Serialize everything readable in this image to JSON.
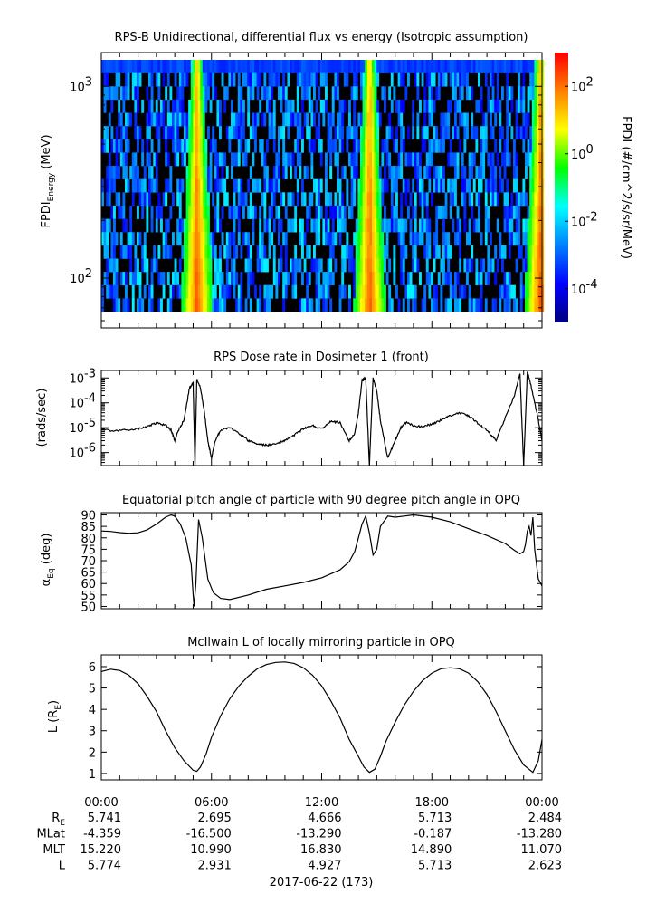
{
  "chart_data": [
    {
      "type": "heatmap",
      "title": "RPS-B  Unidirectional, differential flux vs energy (Isotropic assumption)",
      "ylabel": "FPDI",
      "ylabel_sub": "Energy",
      "ylabel_unit": " (MeV)",
      "yscale": "log",
      "ylim": [
        55,
        1500
      ],
      "yticks": [
        {
          "value": 100,
          "base": "10",
          "exp": "2"
        },
        {
          "value": 1000,
          "base": "10",
          "exp": "3"
        }
      ],
      "energy_bins": 19,
      "perigee_hours": [
        5.15,
        14.55,
        23.85
      ],
      "colorbar": {
        "label": "FPDI (#/cm^2/s/sr/MeV)",
        "scale": "log",
        "range": [
          1e-05,
          1000.0
        ],
        "ticks": [
          {
            "value": -4,
            "base": "10",
            "exp": "-4"
          },
          {
            "value": -2,
            "base": "10",
            "exp": "-2"
          },
          {
            "value": 0,
            "base": "10",
            "exp": "0"
          },
          {
            "value": 2,
            "base": "10",
            "exp": "2"
          }
        ],
        "colors": [
          "#000080",
          "#0000ff",
          "#0080ff",
          "#00ffff",
          "#00ff00",
          "#ffff00",
          "#ff8000",
          "#ff0000"
        ]
      }
    },
    {
      "type": "line",
      "title": "RPS  Dose rate in Dosimeter 1 (front)",
      "ylabel": "(rads/sec)",
      "yscale": "log",
      "ylim": [
        3e-07,
        0.002
      ],
      "yticks": [
        {
          "value": 1e-06,
          "base": "10",
          "exp": "-6"
        },
        {
          "value": 1e-05,
          "base": "10",
          "exp": "-5"
        },
        {
          "value": 0.0001,
          "base": "10",
          "exp": "-4"
        },
        {
          "value": 0.001,
          "base": "10",
          "exp": "-3"
        }
      ],
      "x": [
        0,
        1,
        2,
        2.5,
        3,
        3.5,
        3.8,
        4.0,
        4.2,
        4.5,
        4.8,
        5.0,
        5.1,
        5.2,
        5.4,
        5.6,
        5.8,
        6.0,
        6.2,
        6.5,
        7.0,
        7.5,
        8.0,
        8.5,
        9.0,
        9.5,
        10.0,
        10.5,
        11.0,
        11.5,
        12.0,
        12.5,
        13.0,
        13.5,
        13.8,
        14.0,
        14.2,
        14.4,
        14.6,
        14.8,
        15.0,
        15.2,
        15.6,
        16.0,
        16.3,
        16.6,
        17.0,
        17.5,
        18.0,
        18.5,
        19.0,
        19.5,
        20.0,
        20.5,
        21.0,
        21.5,
        22.0,
        22.5,
        22.8,
        23.0,
        23.2,
        23.4,
        23.6,
        23.8,
        24.0
      ],
      "values": [
        8e-06,
        7.5e-06,
        9e-06,
        1.1e-05,
        1.5e-05,
        1.3e-05,
        8e-06,
        3e-06,
        8e-06,
        2e-05,
        0.0004,
        0.0006,
        3e-07,
        0.0009,
        0.0004,
        5e-05,
        3e-06,
        6e-07,
        3e-06,
        8e-06,
        1e-05,
        6e-06,
        3e-06,
        2.2e-06,
        2e-06,
        2.2e-06,
        3e-06,
        5e-06,
        9e-06,
        1.2e-05,
        9e-06,
        1.8e-05,
        1.6e-05,
        3e-06,
        6e-06,
        4e-05,
        0.0008,
        0.001,
        3e-07,
        0.001,
        0.0003,
        2e-05,
        6e-07,
        3e-06,
        1e-05,
        1.6e-05,
        1.2e-05,
        1.1e-05,
        1.4e-05,
        2e-05,
        3e-05,
        4e-05,
        3e-05,
        1.5e-05,
        8e-06,
        3e-06,
        2.5e-05,
        0.0002,
        0.0015,
        3e-07,
        0.0018,
        0.0005,
        0.0001,
        2e-05,
        3e-06
      ]
    },
    {
      "type": "line",
      "title": "Equatorial pitch angle of particle with 90 degree pitch angle in OPQ",
      "ylabel": "α",
      "ylabel_sub": "Eq",
      "ylabel_unit": " (deg)",
      "ylim": [
        49,
        91
      ],
      "yticks": [
        50,
        55,
        60,
        65,
        70,
        75,
        80,
        85,
        90
      ],
      "x": [
        0,
        0.5,
        1.0,
        1.5,
        2.0,
        2.5,
        3.0,
        3.5,
        3.8,
        4.0,
        4.3,
        4.6,
        4.9,
        5.0,
        5.05,
        5.15,
        5.3,
        5.5,
        5.8,
        6.1,
        6.5,
        7.0,
        8.0,
        9.0,
        10.0,
        11.0,
        12.0,
        13.0,
        13.5,
        13.8,
        14.0,
        14.2,
        14.4,
        14.6,
        14.8,
        15.0,
        15.2,
        15.6,
        16.0,
        16.5,
        17.0,
        18.0,
        19.0,
        20.0,
        21.0,
        22.0,
        22.5,
        22.8,
        23.0,
        23.1,
        23.2,
        23.3,
        23.4,
        23.5,
        23.6,
        23.8,
        24.0
      ],
      "values": [
        83,
        82.8,
        82.3,
        82,
        82.2,
        83.5,
        86,
        89,
        90,
        89.5,
        86,
        80,
        68,
        55,
        50,
        60,
        88,
        80,
        62,
        56,
        53.5,
        53,
        55,
        57.5,
        59,
        60.5,
        62.5,
        66,
        69.5,
        74,
        80,
        86,
        89.5,
        82,
        72.5,
        75,
        85,
        89.5,
        89,
        89.5,
        90,
        89,
        87,
        84,
        81,
        77.5,
        74.5,
        73,
        74,
        77,
        83,
        85,
        81,
        89,
        75,
        62,
        59
      ]
    },
    {
      "type": "line",
      "title": "McIlwain L of locally mirroring particle in OPQ",
      "ylabel": "L (R",
      "ylabel_sub": "E",
      "ylabel_unit": ")",
      "ylim": [
        0.7,
        6.55
      ],
      "yticks": [
        1,
        2,
        3,
        4,
        5,
        6
      ],
      "x": [
        0,
        0.5,
        1.0,
        1.5,
        2.0,
        2.5,
        3.0,
        3.5,
        4.0,
        4.5,
        5.0,
        5.2,
        5.4,
        5.7,
        6.0,
        6.5,
        7.0,
        7.5,
        8.0,
        8.5,
        9.0,
        9.5,
        10.0,
        10.5,
        11.0,
        11.5,
        12.0,
        12.5,
        13.0,
        13.5,
        14.0,
        14.3,
        14.6,
        14.9,
        15.2,
        15.5,
        16.0,
        16.5,
        17.0,
        17.5,
        18.0,
        18.5,
        19.0,
        19.5,
        20.0,
        20.5,
        21.0,
        21.5,
        22.0,
        22.5,
        23.0,
        23.5,
        23.8,
        24.0
      ],
      "values": [
        5.77,
        5.88,
        5.82,
        5.6,
        5.2,
        4.6,
        3.9,
        3.0,
        2.2,
        1.6,
        1.15,
        1.1,
        1.3,
        1.9,
        2.7,
        3.7,
        4.5,
        5.1,
        5.55,
        5.9,
        6.1,
        6.2,
        6.22,
        6.15,
        5.95,
        5.6,
        5.1,
        4.4,
        3.6,
        2.6,
        1.8,
        1.3,
        1.05,
        1.2,
        1.8,
        2.5,
        3.4,
        4.2,
        4.85,
        5.35,
        5.7,
        5.9,
        5.95,
        5.9,
        5.7,
        5.3,
        4.7,
        3.9,
        3.0,
        2.1,
        1.4,
        1.05,
        1.6,
        2.6
      ]
    }
  ],
  "ephemeris": {
    "time_labels": [
      "00:00",
      "06:00",
      "12:00",
      "18:00",
      "00:00"
    ],
    "rows": [
      {
        "label": "R",
        "label_sub": "E",
        "values": [
          "5.741",
          "2.695",
          "4.666",
          "5.713",
          "2.484"
        ]
      },
      {
        "label": "MLat",
        "label_sub": "",
        "values": [
          "-4.359",
          "-16.500",
          "-13.290",
          "-0.187",
          "-13.280"
        ]
      },
      {
        "label": "MLT",
        "label_sub": "",
        "values": [
          "15.220",
          "10.990",
          "16.830",
          "14.890",
          "11.070"
        ]
      },
      {
        "label": "L",
        "label_sub": "",
        "values": [
          "5.774",
          "2.931",
          "4.927",
          "5.713",
          "2.623"
        ]
      }
    ],
    "date": "2017-06-22 (173)"
  }
}
